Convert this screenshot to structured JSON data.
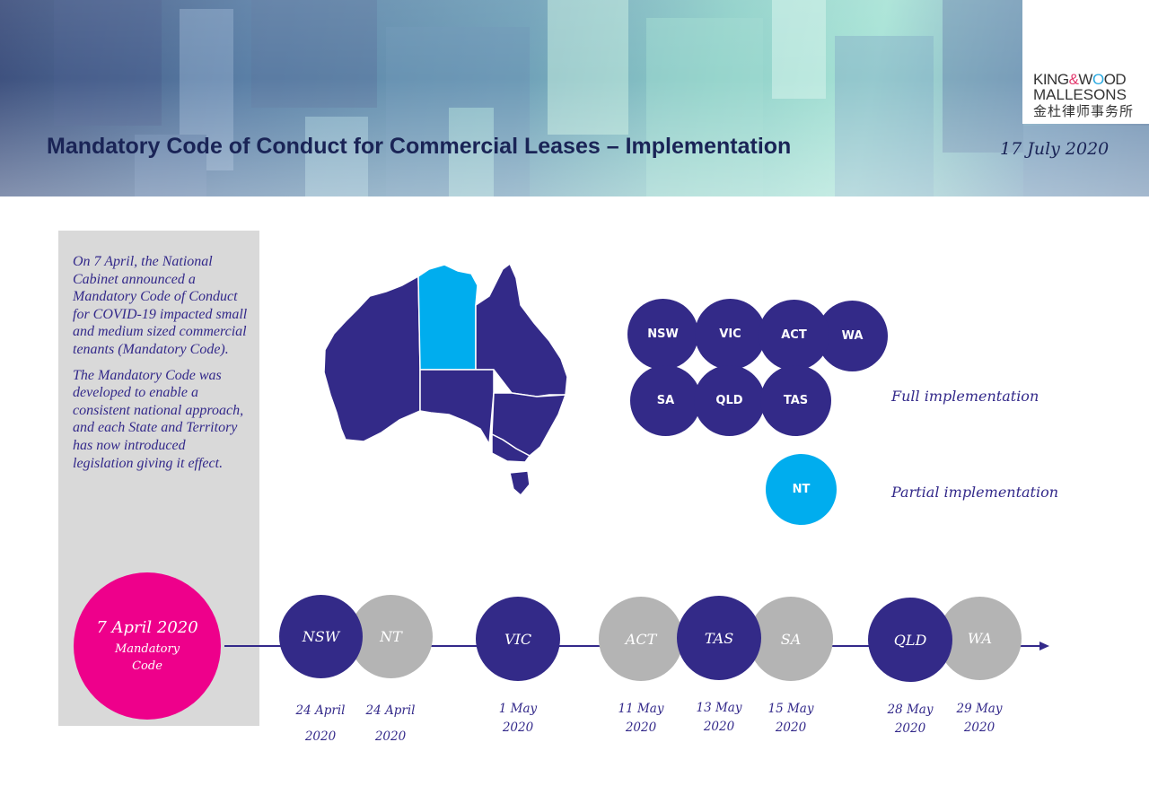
{
  "header": {
    "title": "Mandatory Code of Conduct for Commercial Leases – Implementation",
    "date": "17 July 2020"
  },
  "logo": {
    "line1_a": "KING",
    "line1_amp": "&",
    "line1_w": "W",
    "line1_o": "O",
    "line1_rest": "OD",
    "line2": "MALLESONS",
    "line3": "金杜律师事务所"
  },
  "intro": {
    "paragraph1": "On 7 April, the National Cabinet announced a Mandatory Code of Conduct for COVID-19 impacted small and medium sized commercial tenants (Mandatory Code).",
    "paragraph2": "The Mandatory Code was developed to enable a consistent national approach, and each State and Territory has now introduced legislation giving it effect."
  },
  "legend": {
    "full": {
      "label": "Full implementation",
      "states": [
        "NSW",
        "VIC",
        "ACT",
        "WA",
        "SA",
        "QLD",
        "TAS"
      ]
    },
    "partial": {
      "label": "Partial implementation",
      "states": [
        "NT"
      ]
    }
  },
  "timeline": {
    "start": {
      "date": "7 April 2020",
      "label_line1": "Mandatory",
      "label_line2": "Code"
    },
    "events": [
      {
        "state": "NSW",
        "date_line1": "24 April",
        "date_line2": "2020"
      },
      {
        "state": "NT",
        "date_line1": "24 April",
        "date_line2": "2020"
      },
      {
        "state": "VIC",
        "date_line1": "1 May",
        "date_line2": "2020"
      },
      {
        "state": "ACT",
        "date_line1": "11 May",
        "date_line2": "2020"
      },
      {
        "state": "TAS",
        "date_line1": "13 May",
        "date_line2": "2020"
      },
      {
        "state": "SA",
        "date_line1": "15 May",
        "date_line2": "2020"
      },
      {
        "state": "QLD",
        "date_line1": "28 May",
        "date_line2": "2020"
      },
      {
        "state": "WA",
        "date_line1": "29 May",
        "date_line2": "2020"
      }
    ]
  },
  "colors": {
    "full": "#332a88",
    "partial": "#00adee",
    "pending": "#b4b4b4",
    "code": "#ee008b"
  }
}
